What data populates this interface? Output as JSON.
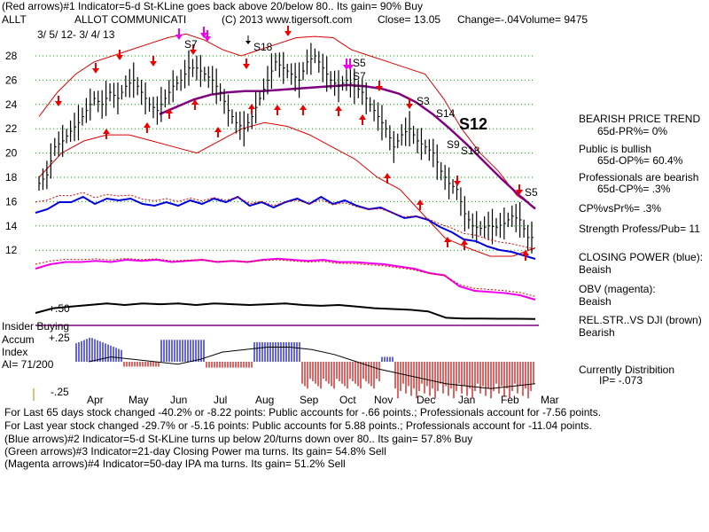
{
  "header": {
    "line1": "(Red arrows)#1 Indicator=5-d St-KLine goes back above 20/below 80.. Its gain= 90% Buy",
    "ticker": "ALLT",
    "company": "ALLOT COMMUNICATI",
    "copyright": "(C) 2013 www.tigersoft.com",
    "close": "Close=   13.05",
    "change": "Change=-.04",
    "volume": "Volume= 9475",
    "daterange": "3/ 5/ 12-  3/ 4/ 13"
  },
  "signals": {
    "s7a": "S7",
    "s18a": "S18",
    "s5a": "S5",
    "s7b": "S7",
    "s3": "S3",
    "s14": "S14",
    "s12": "S12",
    "s9": "S9",
    "s18b": "S18",
    "s5b": "S5"
  },
  "left_labels": {
    "insider": "Insider Buying",
    "accum": "Accum",
    "index": "Index",
    "ai": "AI= 71/200",
    "plus50": "+.50",
    "plus25": "+.25",
    "minus25": "-.25"
  },
  "side": {
    "trend_title": "BEARISH PRICE TREND",
    "trend_val": "65d-PR%= 0%",
    "public_title": "Public is bullish",
    "public_val": "65d-OP%= 60.4%",
    "pro_title": "Professionals are bearish",
    "pro_val": "65d-CP%= .3%",
    "cpvspr": "CP%vsPr%=  .3%",
    "strength": "Strength Profess/Pub= 11",
    "cp_title": "CLOSING POWER (blue):",
    "cp_val": "Beaish",
    "obv_title": "OBV (magenta):",
    "obv_val": "Beaish",
    "rel_title": "REL.STR..VS DJI (brown)",
    "rel_val": "Bearish",
    "dist_title": "Currently Distribition",
    "dist_val": "IP= -.073"
  },
  "footer": {
    "l1": "For Last 65 days stock changed -40.2% or -8.22 points:  Public accounts for -.66 points.;  Professionals account for -7.56 points.",
    "l2": "For Last year stock changed -29.7% or -5.16 points:  Public accounts for  5.88 points.;  Professionals account for -11.04 points.",
    "l3": "(Blue arrows)#2 Indicator=5-d St-KLine turns up below 20/turns down over 80.. Its gain= 57.8% Buy",
    "l4": "(Green arrows)#3 Indicator=21-day Closing Power ma turns. Its gain= 54.8% Sell",
    "l5": "(Magenta arrows)#4 Indicator=50-day IPA ma turns. Its gain= 51.2% Sell"
  },
  "colors": {
    "price": "#000000",
    "band": "#dd0000",
    "ma": "#800080",
    "cp": "#0000dd",
    "obv": "#ee00ee",
    "rel": "#000000",
    "grid": "#00aa00",
    "accum_pos": "#0000cc",
    "accum_neg": "#cc0000",
    "red_arrow": "#ee0000",
    "magenta_arrow": "#ee00ee"
  },
  "chart_data": {
    "type": "line",
    "title": "ALLT - ALLOT COMMUNICATI",
    "y_ticks": [
      "28",
      "26",
      "24",
      "22",
      "20",
      "18",
      "16",
      "14",
      "12"
    ],
    "ylim": [
      11,
      29
    ],
    "x_ticks": [
      "Apr",
      "May",
      "Jun",
      "Jul",
      "Aug",
      "Sep",
      "Oct",
      "Nov",
      "Dec",
      "Jan",
      "Feb",
      "Mar"
    ],
    "series": [
      {
        "name": "Price (approx closes)",
        "values": [
          17.5,
          18.2,
          20.5,
          21,
          21.8,
          22.5,
          23.5,
          24.5,
          24,
          25,
          24.5,
          25.5,
          26,
          25,
          24,
          23.5,
          24.5,
          25.5,
          26,
          27,
          27,
          26.5,
          26,
          25,
          23.5,
          22.5,
          22,
          23,
          24.5,
          26,
          27.5,
          27,
          26.5,
          26,
          27.5,
          28,
          27,
          26,
          25.5,
          26,
          25.5,
          25,
          24,
          23,
          22,
          20.5,
          21.5,
          22,
          21,
          20.5,
          20,
          18.5,
          17.5,
          17,
          15,
          14,
          13.8,
          14,
          13.9,
          14.2,
          14.8,
          14.5,
          13.05
        ]
      },
      {
        "name": "Upper band",
        "values": [
          23,
          25,
          26.5,
          27.5,
          28,
          28.5,
          29,
          29.5,
          29.8,
          29.3,
          28.5,
          28,
          28.5,
          29,
          29.5,
          29.6,
          29.5,
          28.5,
          28,
          27.5,
          27,
          26.5,
          24.5,
          22,
          20,
          18.5,
          16.5,
          15.5
        ]
      },
      {
        "name": "Lower band",
        "values": [
          18,
          20,
          21,
          21.5,
          21.5,
          21,
          20.5,
          20,
          21,
          22,
          22.5,
          22.2,
          21.5,
          20.5,
          19.5,
          18,
          17,
          15,
          13,
          12.2,
          11.5,
          11.5,
          12.2
        ]
      },
      {
        "name": "Moving average",
        "values": [
          23.2,
          23.8,
          24.4,
          24.8,
          25.0,
          25.1,
          25.1,
          25.2,
          25.3,
          25.4,
          25.5,
          25.6,
          25.5,
          25.3,
          24.9,
          24.2,
          23.2,
          22.0,
          20.7,
          19.3,
          17.9,
          16.6,
          15.4
        ]
      }
    ]
  }
}
